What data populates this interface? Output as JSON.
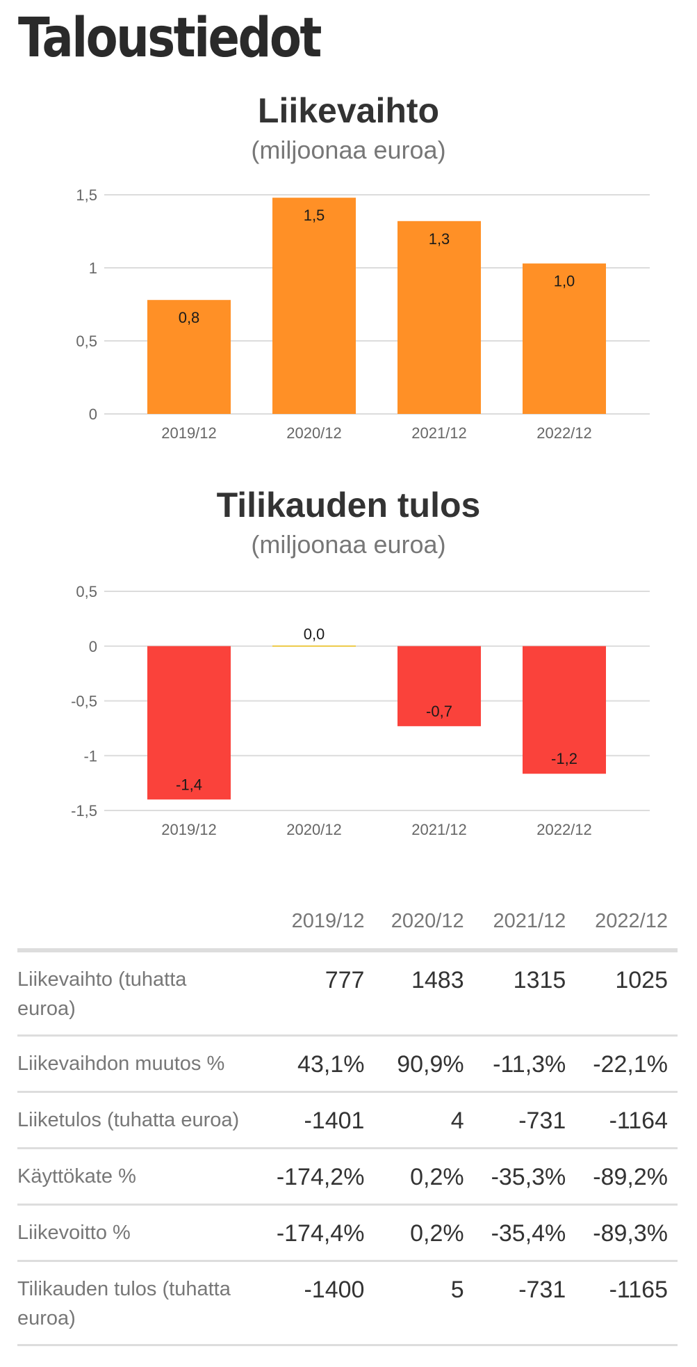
{
  "page": {
    "title": "Taloustiedot"
  },
  "chart_data": [
    {
      "type": "bar",
      "title": "Liikevaihto",
      "subtitle": "(miljoonaa euroa)",
      "categories": [
        "2019/12",
        "2020/12",
        "2021/12",
        "2022/12"
      ],
      "values": [
        0.78,
        1.48,
        1.32,
        1.03
      ],
      "data_labels": [
        "0,8",
        "1,5",
        "1,3",
        "1,0"
      ],
      "ylim": [
        0,
        1.5
      ],
      "yticks": [
        0,
        0.5,
        1,
        1.5
      ],
      "ytick_labels": [
        "0",
        "0,5",
        "1",
        "1,5"
      ],
      "grid": true,
      "colors": {
        "positive": "#FF9026",
        "negative": "#FA423B"
      }
    },
    {
      "type": "bar",
      "title": "Tilikauden tulos",
      "subtitle": "(miljoonaa euroa)",
      "categories": [
        "2019/12",
        "2020/12",
        "2021/12",
        "2022/12"
      ],
      "values": [
        -1.4,
        0.005,
        -0.731,
        -1.165
      ],
      "data_labels": [
        "-1,4",
        "0,0",
        "-0,7",
        "-1,2"
      ],
      "ylim": [
        -1.5,
        0.5
      ],
      "yticks": [
        -1.5,
        -1,
        -0.5,
        0,
        0.5
      ],
      "ytick_labels": [
        "-1,5",
        "-1",
        "-0,5",
        "0",
        "0,5"
      ],
      "grid": true,
      "colors": {
        "positive": "#F2C318",
        "negative": "#FA423B"
      }
    }
  ],
  "table": {
    "columns": [
      "2019/12",
      "2020/12",
      "2021/12",
      "2022/12"
    ],
    "rows": [
      {
        "label": "Liikevaihto (tuhatta euroa)",
        "values": [
          "777",
          "1483",
          "1315",
          "1025"
        ]
      },
      {
        "label": "Liikevaihdon muutos %",
        "values": [
          "43,1%",
          "90,9%",
          "-11,3%",
          "-22,1%"
        ]
      },
      {
        "label": "Liiketulos (tuhatta euroa)",
        "values": [
          "-1401",
          "4",
          "-731",
          "-1164"
        ]
      },
      {
        "label": "Käyttökate %",
        "values": [
          "-174,2%",
          "0,2%",
          "-35,3%",
          "-89,2%"
        ]
      },
      {
        "label": "Liikevoitto %",
        "values": [
          "-174,4%",
          "0,2%",
          "-35,4%",
          "-89,3%"
        ]
      },
      {
        "label": "Tilikauden tulos (tuhatta euroa)",
        "values": [
          "-1400",
          "5",
          "-731",
          "-1165"
        ]
      }
    ]
  }
}
